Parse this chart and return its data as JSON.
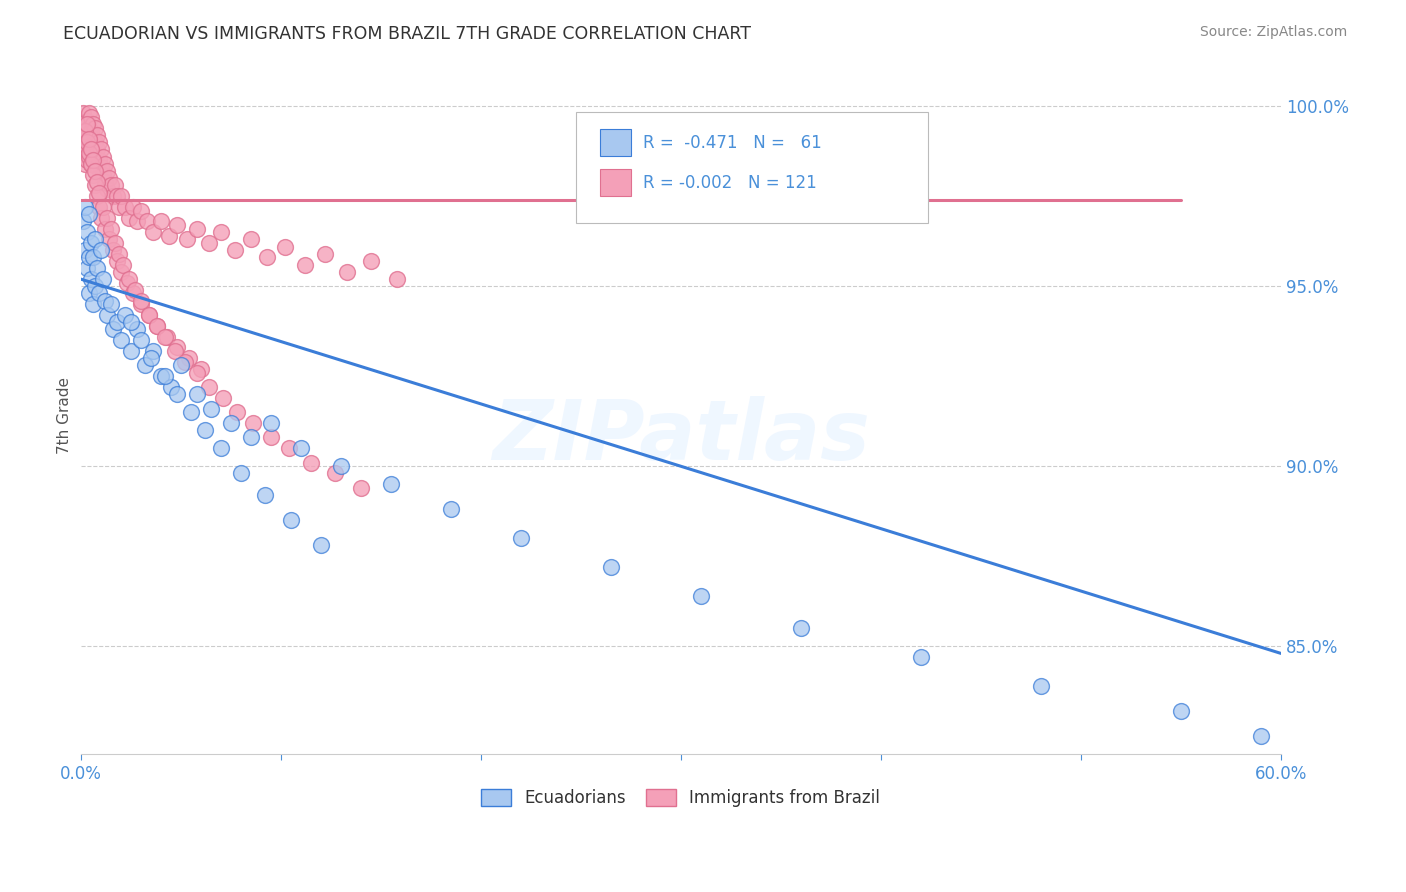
{
  "title": "ECUADORIAN VS IMMIGRANTS FROM BRAZIL 7TH GRADE CORRELATION CHART",
  "source": "Source: ZipAtlas.com",
  "ylabel": "7th Grade",
  "xlim": [
    0.0,
    0.6
  ],
  "ylim": [
    0.82,
    1.008
  ],
  "xticks": [
    0.0,
    0.1,
    0.2,
    0.3,
    0.4,
    0.5,
    0.6
  ],
  "xticklabels": [
    "0.0%",
    "",
    "",
    "",
    "",
    "",
    "60.0%"
  ],
  "yticks": [
    0.85,
    0.9,
    0.95,
    1.0
  ],
  "yticklabels": [
    "85.0%",
    "90.0%",
    "95.0%",
    "100.0%"
  ],
  "color_blue": "#A8C8F0",
  "color_pink": "#F4A0B8",
  "color_line_blue": "#3B7DD8",
  "color_line_pink": "#E07090",
  "color_title": "#333333",
  "color_axis": "#4A90D9",
  "color_source": "#888888",
  "color_grid": "#CCCCCC",
  "watermark": "ZIPatlas",
  "blue_trend_x": [
    0.0,
    0.6
  ],
  "blue_trend_y": [
    0.952,
    0.848
  ],
  "pink_trend_x": [
    0.0,
    0.55
  ],
  "pink_trend_y": [
    0.974,
    0.974
  ],
  "ecu_x": [
    0.001,
    0.002,
    0.002,
    0.003,
    0.003,
    0.004,
    0.004,
    0.004,
    0.005,
    0.005,
    0.006,
    0.006,
    0.007,
    0.007,
    0.008,
    0.009,
    0.01,
    0.011,
    0.012,
    0.013,
    0.015,
    0.016,
    0.018,
    0.02,
    0.022,
    0.025,
    0.028,
    0.032,
    0.036,
    0.04,
    0.045,
    0.05,
    0.058,
    0.065,
    0.075,
    0.085,
    0.095,
    0.11,
    0.13,
    0.155,
    0.185,
    0.22,
    0.265,
    0.31,
    0.36,
    0.42,
    0.48,
    0.55,
    0.59,
    0.025,
    0.03,
    0.035,
    0.042,
    0.048,
    0.055,
    0.062,
    0.07,
    0.08,
    0.092,
    0.105,
    0.12
  ],
  "ecu_y": [
    0.968,
    0.972,
    0.96,
    0.965,
    0.955,
    0.97,
    0.958,
    0.948,
    0.962,
    0.952,
    0.958,
    0.945,
    0.963,
    0.95,
    0.955,
    0.948,
    0.96,
    0.952,
    0.946,
    0.942,
    0.945,
    0.938,
    0.94,
    0.935,
    0.942,
    0.932,
    0.938,
    0.928,
    0.932,
    0.925,
    0.922,
    0.928,
    0.92,
    0.916,
    0.912,
    0.908,
    0.912,
    0.905,
    0.9,
    0.895,
    0.888,
    0.88,
    0.872,
    0.864,
    0.855,
    0.847,
    0.839,
    0.832,
    0.825,
    0.94,
    0.935,
    0.93,
    0.925,
    0.92,
    0.915,
    0.91,
    0.905,
    0.898,
    0.892,
    0.885,
    0.878
  ],
  "bra_x": [
    0.001,
    0.001,
    0.002,
    0.002,
    0.002,
    0.002,
    0.003,
    0.003,
    0.003,
    0.003,
    0.004,
    0.004,
    0.004,
    0.004,
    0.005,
    0.005,
    0.005,
    0.005,
    0.006,
    0.006,
    0.006,
    0.007,
    0.007,
    0.007,
    0.008,
    0.008,
    0.008,
    0.009,
    0.009,
    0.01,
    0.01,
    0.011,
    0.011,
    0.012,
    0.012,
    0.013,
    0.013,
    0.014,
    0.015,
    0.016,
    0.017,
    0.018,
    0.019,
    0.02,
    0.022,
    0.024,
    0.026,
    0.028,
    0.03,
    0.033,
    0.036,
    0.04,
    0.044,
    0.048,
    0.053,
    0.058,
    0.064,
    0.07,
    0.077,
    0.085,
    0.093,
    0.102,
    0.112,
    0.122,
    0.133,
    0.145,
    0.158,
    0.002,
    0.003,
    0.004,
    0.005,
    0.006,
    0.007,
    0.008,
    0.009,
    0.01,
    0.012,
    0.014,
    0.016,
    0.018,
    0.02,
    0.023,
    0.026,
    0.03,
    0.034,
    0.038,
    0.043,
    0.048,
    0.054,
    0.06,
    0.003,
    0.004,
    0.005,
    0.006,
    0.007,
    0.008,
    0.009,
    0.011,
    0.013,
    0.015,
    0.017,
    0.019,
    0.021,
    0.024,
    0.027,
    0.03,
    0.034,
    0.038,
    0.042,
    0.047,
    0.052,
    0.058,
    0.064,
    0.071,
    0.078,
    0.086,
    0.095,
    0.104,
    0.115,
    0.127,
    0.14
  ],
  "bra_y": [
    0.998,
    0.995,
    0.992,
    0.99,
    0.987,
    0.984,
    0.996,
    0.993,
    0.989,
    0.985,
    0.998,
    0.994,
    0.99,
    0.986,
    0.997,
    0.993,
    0.989,
    0.984,
    0.995,
    0.991,
    0.987,
    0.994,
    0.99,
    0.985,
    0.992,
    0.988,
    0.983,
    0.99,
    0.985,
    0.988,
    0.983,
    0.986,
    0.981,
    0.984,
    0.979,
    0.982,
    0.977,
    0.98,
    0.978,
    0.975,
    0.978,
    0.975,
    0.972,
    0.975,
    0.972,
    0.969,
    0.972,
    0.968,
    0.971,
    0.968,
    0.965,
    0.968,
    0.964,
    0.967,
    0.963,
    0.966,
    0.962,
    0.965,
    0.96,
    0.963,
    0.958,
    0.961,
    0.956,
    0.959,
    0.954,
    0.957,
    0.952,
    0.993,
    0.99,
    0.987,
    0.984,
    0.981,
    0.978,
    0.975,
    0.972,
    0.969,
    0.966,
    0.963,
    0.96,
    0.957,
    0.954,
    0.951,
    0.948,
    0.945,
    0.942,
    0.939,
    0.936,
    0.933,
    0.93,
    0.927,
    0.995,
    0.991,
    0.988,
    0.985,
    0.982,
    0.979,
    0.976,
    0.972,
    0.969,
    0.966,
    0.962,
    0.959,
    0.956,
    0.952,
    0.949,
    0.946,
    0.942,
    0.939,
    0.936,
    0.932,
    0.929,
    0.926,
    0.922,
    0.919,
    0.915,
    0.912,
    0.908,
    0.905,
    0.901,
    0.898,
    0.894
  ]
}
